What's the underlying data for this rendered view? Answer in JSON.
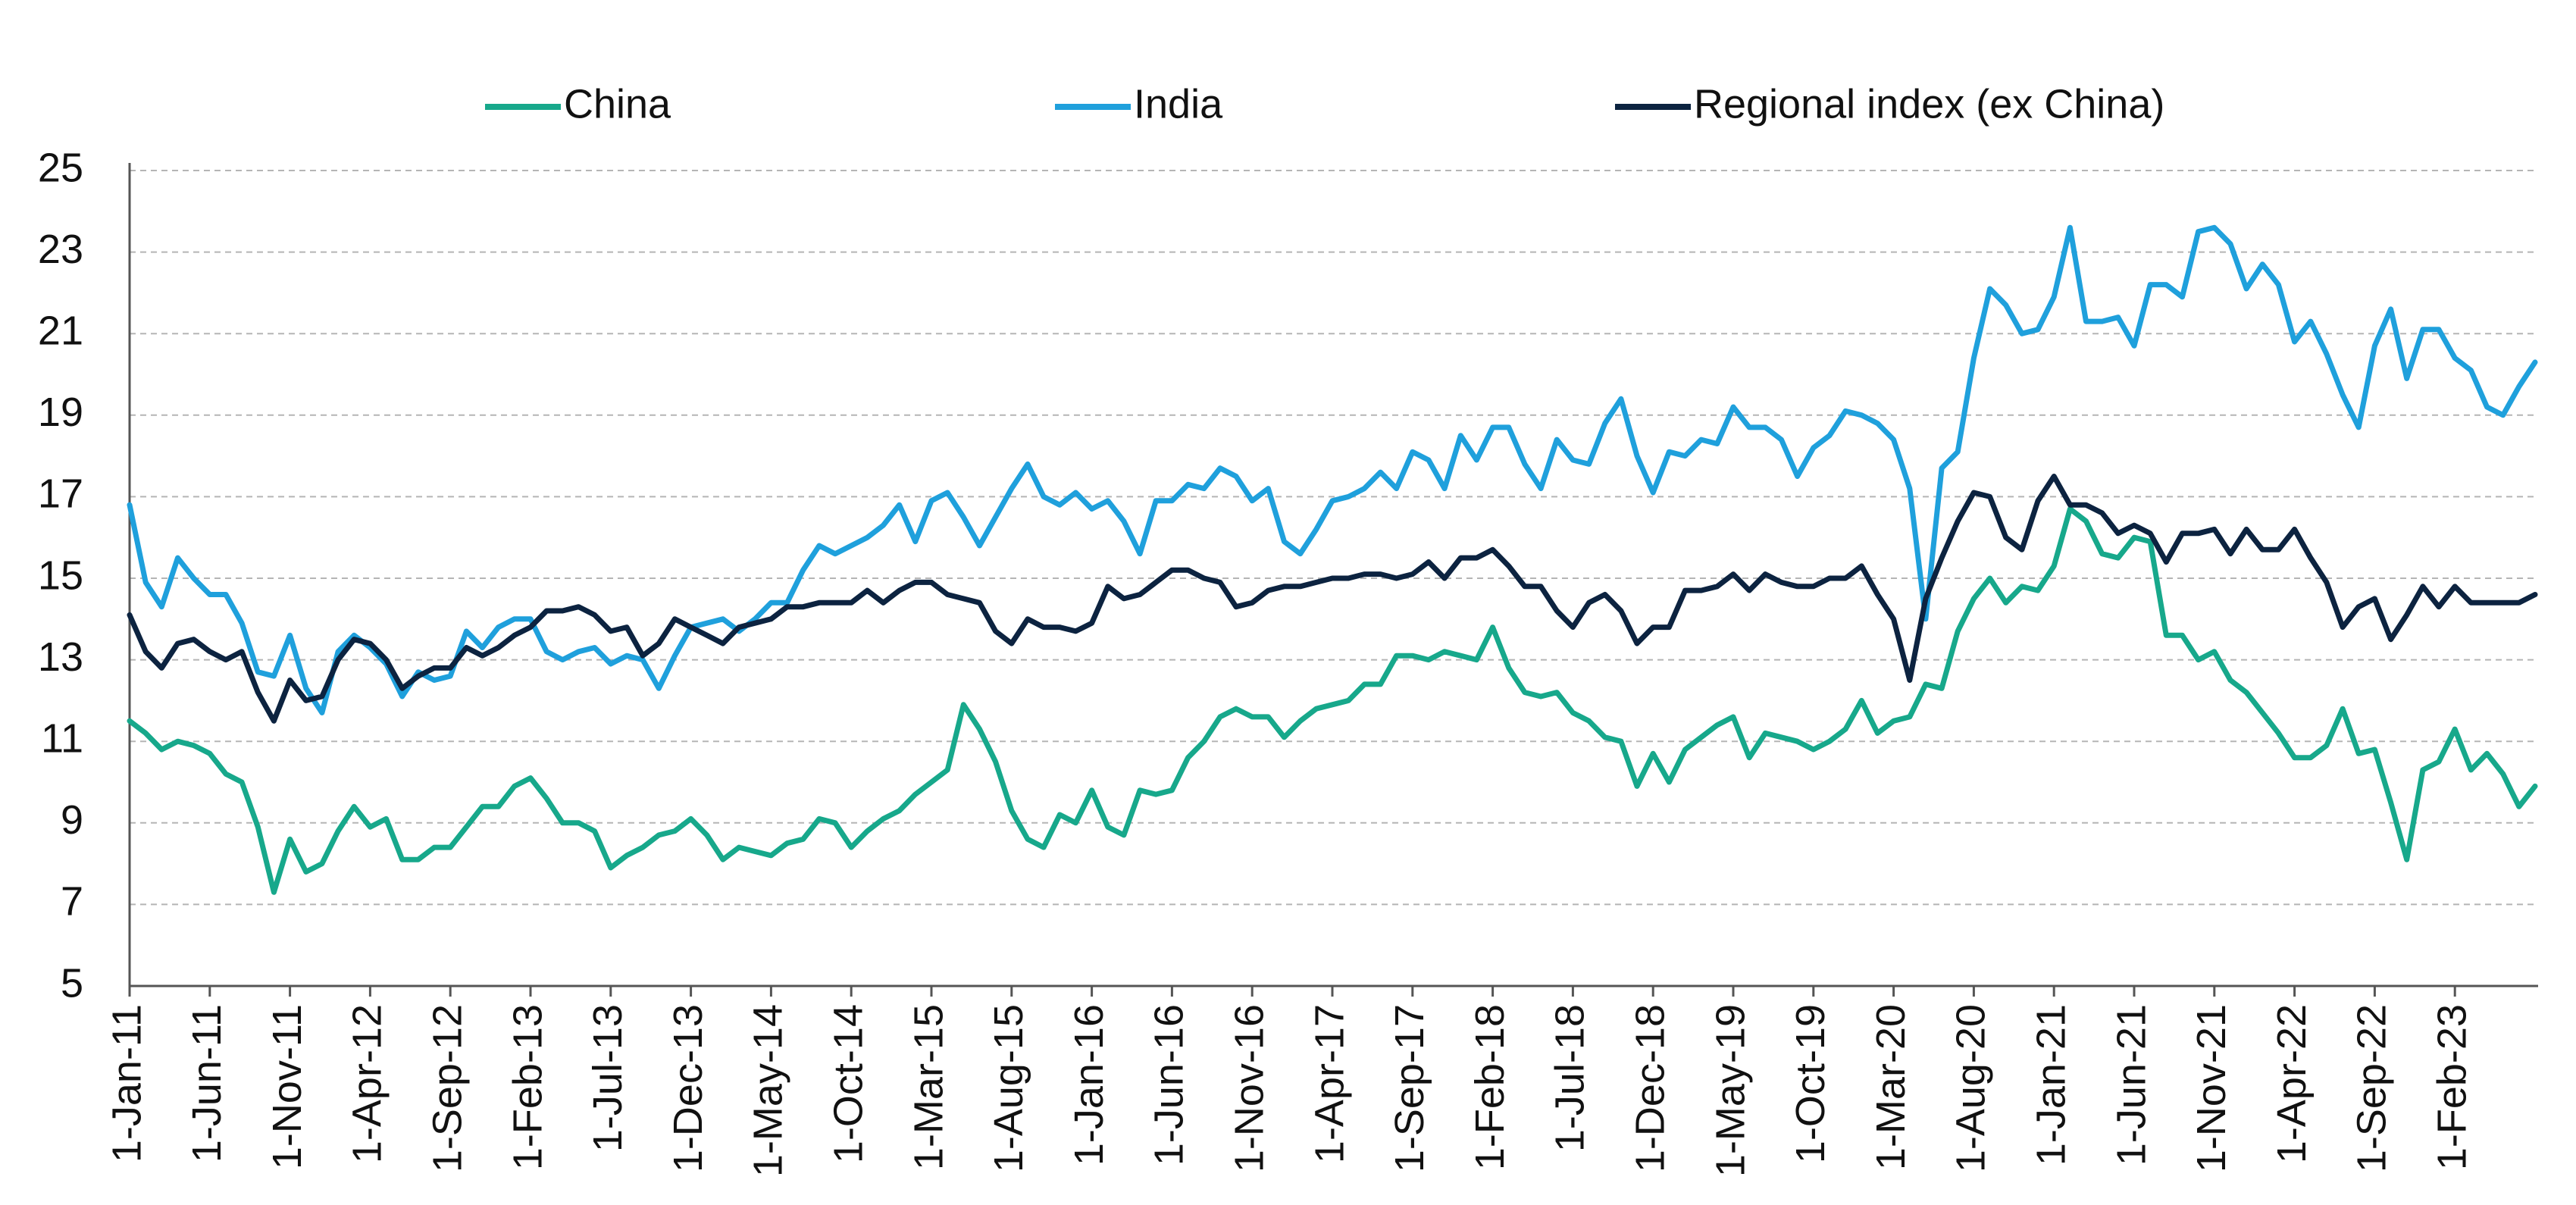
{
  "chart_data": {
    "type": "line",
    "categories": [
      "1-Jan-11",
      null,
      null,
      null,
      null,
      "1-Jun-11",
      null,
      null,
      null,
      null,
      "1-Nov-11",
      null,
      null,
      null,
      null,
      "1-Apr-12",
      null,
      null,
      null,
      null,
      "1-Sep-12",
      null,
      null,
      null,
      null,
      "1-Feb-13",
      null,
      null,
      null,
      null,
      "1-Jul-13",
      null,
      null,
      null,
      null,
      "1-Dec-13",
      null,
      null,
      null,
      null,
      "1-May-14",
      null,
      null,
      null,
      null,
      "1-Oct-14",
      null,
      null,
      null,
      null,
      "1-Mar-15",
      null,
      null,
      null,
      null,
      "1-Aug-15",
      null,
      null,
      null,
      null,
      "1-Jan-16",
      null,
      null,
      null,
      null,
      "1-Jun-16",
      null,
      null,
      null,
      null,
      "1-Nov-16",
      null,
      null,
      null,
      null,
      "1-Apr-17",
      null,
      null,
      null,
      null,
      "1-Sep-17",
      null,
      null,
      null,
      null,
      "1-Feb-18",
      null,
      null,
      null,
      null,
      "1-Jul-18",
      null,
      null,
      null,
      null,
      "1-Dec-18",
      null,
      null,
      null,
      null,
      "1-May-19",
      null,
      null,
      null,
      null,
      "1-Oct-19",
      null,
      null,
      null,
      null,
      "1-Mar-20",
      null,
      null,
      null,
      null,
      "1-Aug-20",
      null,
      null,
      null,
      null,
      "1-Jan-21",
      null,
      null,
      null,
      null,
      "1-Jun-21",
      null,
      null,
      null,
      null,
      "1-Nov-21",
      null,
      null,
      null,
      null,
      "1-Apr-22",
      null,
      null,
      null,
      null,
      "1-Sep-22",
      null,
      null,
      null,
      null,
      "1-Feb-23",
      null,
      null,
      null,
      null,
      null
    ],
    "series": [
      {
        "name": "China",
        "color": "#17a88b",
        "values": [
          11.5,
          11.2,
          10.8,
          11.0,
          10.9,
          10.7,
          10.2,
          10.0,
          8.9,
          7.3,
          8.6,
          7.8,
          8.0,
          8.8,
          9.4,
          8.9,
          9.1,
          8.1,
          8.1,
          8.4,
          8.4,
          8.9,
          9.4,
          9.4,
          9.9,
          10.1,
          9.6,
          9.0,
          9.0,
          8.8,
          7.9,
          8.2,
          8.4,
          8.7,
          8.8,
          9.1,
          8.7,
          8.1,
          8.4,
          8.3,
          8.2,
          8.5,
          8.6,
          9.1,
          9.0,
          8.4,
          8.8,
          9.1,
          9.3,
          9.7,
          10.0,
          10.3,
          11.9,
          11.3,
          10.5,
          9.3,
          8.6,
          8.4,
          9.2,
          9.0,
          9.8,
          8.9,
          8.7,
          9.8,
          9.7,
          9.8,
          10.6,
          11.0,
          11.6,
          11.8,
          11.6,
          11.6,
          11.1,
          11.5,
          11.8,
          11.9,
          12.0,
          12.4,
          12.4,
          13.1,
          13.1,
          13.0,
          13.2,
          13.1,
          13.0,
          13.8,
          12.8,
          12.2,
          12.1,
          12.2,
          11.7,
          11.5,
          11.1,
          11.0,
          9.9,
          10.7,
          10.0,
          10.8,
          11.1,
          11.4,
          11.6,
          10.6,
          11.2,
          11.1,
          11.0,
          10.8,
          11.0,
          11.3,
          12.0,
          11.2,
          11.5,
          11.6,
          12.4,
          12.3,
          13.7,
          14.5,
          15.0,
          14.4,
          14.8,
          14.7,
          15.3,
          16.7,
          16.4,
          15.6,
          15.5,
          16.0,
          15.9,
          13.6,
          13.6,
          13.0,
          13.2,
          12.5,
          12.2,
          11.7,
          11.2,
          10.6,
          10.6,
          10.9,
          11.8,
          10.7,
          10.8,
          9.5,
          8.1,
          10.3,
          10.5,
          11.3,
          10.3,
          10.7,
          10.2,
          9.4,
          9.9
        ]
      },
      {
        "name": "India",
        "color": "#1fa0dc",
        "values": [
          16.8,
          14.9,
          14.3,
          15.5,
          15.0,
          14.6,
          14.6,
          13.9,
          12.7,
          12.6,
          13.6,
          12.3,
          11.7,
          13.2,
          13.6,
          13.3,
          12.9,
          12.1,
          12.7,
          12.5,
          12.6,
          13.7,
          13.3,
          13.8,
          14.0,
          14.0,
          13.2,
          13.0,
          13.2,
          13.3,
          12.9,
          13.1,
          13.0,
          12.3,
          13.1,
          13.8,
          13.9,
          14.0,
          13.7,
          14.0,
          14.4,
          14.4,
          15.2,
          15.8,
          15.6,
          15.8,
          16.0,
          16.3,
          16.8,
          15.9,
          16.9,
          17.1,
          16.5,
          15.8,
          16.5,
          17.2,
          17.8,
          17.0,
          16.8,
          17.1,
          16.7,
          16.9,
          16.4,
          15.6,
          16.9,
          16.9,
          17.3,
          17.2,
          17.7,
          17.5,
          16.9,
          17.2,
          15.9,
          15.6,
          16.2,
          16.9,
          17.0,
          17.2,
          17.6,
          17.2,
          18.1,
          17.9,
          17.2,
          18.5,
          17.9,
          18.7,
          18.7,
          17.8,
          17.2,
          18.4,
          17.9,
          17.8,
          18.8,
          19.4,
          18.0,
          17.1,
          18.1,
          18.0,
          18.4,
          18.3,
          19.2,
          18.7,
          18.7,
          18.4,
          17.5,
          18.2,
          18.5,
          19.1,
          19.0,
          18.8,
          18.4,
          17.2,
          14.0,
          17.7,
          18.1,
          20.4,
          22.1,
          21.7,
          21.0,
          21.1,
          21.9,
          23.6,
          21.3,
          21.3,
          21.4,
          20.7,
          22.2,
          22.2,
          21.9,
          23.5,
          23.6,
          23.2,
          22.1,
          22.7,
          22.2,
          20.8,
          21.3,
          20.5,
          19.5,
          18.7,
          20.7,
          21.6,
          19.9,
          21.1,
          21.1,
          20.4,
          20.1,
          19.2,
          19.0,
          19.7,
          20.3
        ]
      },
      {
        "name": "Regional index (ex China)",
        "color": "#0c2340",
        "values": [
          14.1,
          13.2,
          12.8,
          13.4,
          13.5,
          13.2,
          13.0,
          13.2,
          12.2,
          11.5,
          12.5,
          12.0,
          12.1,
          13.0,
          13.5,
          13.4,
          13.0,
          12.3,
          12.6,
          12.8,
          12.8,
          13.3,
          13.1,
          13.3,
          13.6,
          13.8,
          14.2,
          14.2,
          14.3,
          14.1,
          13.7,
          13.8,
          13.1,
          13.4,
          14.0,
          13.8,
          13.6,
          13.4,
          13.8,
          13.9,
          14.0,
          14.3,
          14.3,
          14.4,
          14.4,
          14.4,
          14.7,
          14.4,
          14.7,
          14.9,
          14.9,
          14.6,
          14.5,
          14.4,
          13.7,
          13.4,
          14.0,
          13.8,
          13.8,
          13.7,
          13.9,
          14.8,
          14.5,
          14.6,
          14.9,
          15.2,
          15.2,
          15.0,
          14.9,
          14.3,
          14.4,
          14.7,
          14.8,
          14.8,
          14.9,
          15.0,
          15.0,
          15.1,
          15.1,
          15.0,
          15.1,
          15.4,
          15.0,
          15.5,
          15.5,
          15.7,
          15.3,
          14.8,
          14.8,
          14.2,
          13.8,
          14.4,
          14.6,
          14.2,
          13.4,
          13.8,
          13.8,
          14.7,
          14.7,
          14.8,
          15.1,
          14.7,
          15.1,
          14.9,
          14.8,
          14.8,
          15.0,
          15.0,
          15.3,
          14.6,
          14.0,
          12.5,
          14.5,
          15.5,
          16.4,
          17.1,
          17.0,
          16.0,
          15.7,
          16.9,
          17.5,
          16.8,
          16.8,
          16.6,
          16.1,
          16.3,
          16.1,
          15.4,
          16.1,
          16.1,
          16.2,
          15.6,
          16.2,
          15.7,
          15.7,
          16.2,
          15.5,
          14.9,
          13.8,
          14.3,
          14.5,
          13.5,
          14.1,
          14.8,
          14.3,
          14.8,
          14.4,
          14.4,
          14.4,
          14.4,
          14.6
        ]
      }
    ],
    "ylim": [
      5,
      25
    ],
    "yticks": [
      5,
      7,
      9,
      11,
      13,
      15,
      17,
      19,
      21,
      23,
      25
    ],
    "grid": true,
    "legend": "top"
  }
}
